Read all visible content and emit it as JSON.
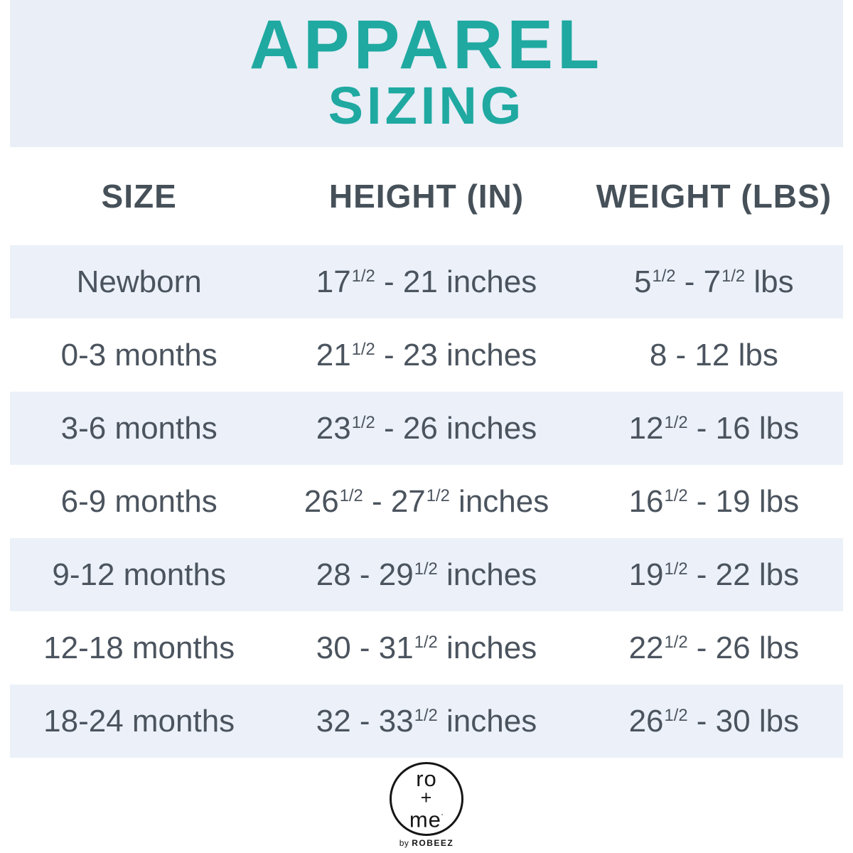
{
  "title": {
    "line1": "APPAREL",
    "line2": "SIZING"
  },
  "colors": {
    "accent_teal": "#1FA9A1",
    "banner_bg": "#E9EEF7",
    "row_shaded_bg": "#ECF1F9",
    "heading_text": "#465059",
    "body_text": "#4B545E"
  },
  "table": {
    "columns": [
      "SIZE",
      "HEIGHT (IN)",
      "WEIGHT (LBS)"
    ],
    "shaded_rows": [
      0,
      2,
      4,
      6
    ],
    "rows": [
      [
        [
          {
            "t": "Newborn"
          }
        ],
        [
          {
            "t": "17"
          },
          {
            "s": "1/2"
          },
          {
            "t": " - 21 inches"
          }
        ],
        [
          {
            "t": "5"
          },
          {
            "s": "1/2"
          },
          {
            "t": " - 7"
          },
          {
            "s": "1/2"
          },
          {
            "t": " lbs"
          }
        ]
      ],
      [
        [
          {
            "t": "0-3 months"
          }
        ],
        [
          {
            "t": "21"
          },
          {
            "s": "1/2"
          },
          {
            "t": " - 23 inches"
          }
        ],
        [
          {
            "t": "8 - 12 lbs"
          }
        ]
      ],
      [
        [
          {
            "t": "3-6 months"
          }
        ],
        [
          {
            "t": "23"
          },
          {
            "s": "1/2"
          },
          {
            "t": " - 26 inches"
          }
        ],
        [
          {
            "t": "12"
          },
          {
            "s": "1/2"
          },
          {
            "t": " - 16 lbs"
          }
        ]
      ],
      [
        [
          {
            "t": "6-9 months"
          }
        ],
        [
          {
            "t": "26"
          },
          {
            "s": "1/2"
          },
          {
            "t": " - 27"
          },
          {
            "s": "1/2"
          },
          {
            "t": " inches"
          }
        ],
        [
          {
            "t": "16"
          },
          {
            "s": "1/2"
          },
          {
            "t": " - 19 lbs"
          }
        ]
      ],
      [
        [
          {
            "t": "9-12 months"
          }
        ],
        [
          {
            "t": "28 - 29"
          },
          {
            "s": "1/2"
          },
          {
            "t": " inches"
          }
        ],
        [
          {
            "t": "19"
          },
          {
            "s": "1/2"
          },
          {
            "t": " - 22 lbs"
          }
        ]
      ],
      [
        [
          {
            "t": "12-18 months"
          }
        ],
        [
          {
            "t": "30 - 31"
          },
          {
            "s": "1/2"
          },
          {
            "t": " inches"
          }
        ],
        [
          {
            "t": "22"
          },
          {
            "s": "1/2"
          },
          {
            "t": " - 26 lbs"
          }
        ]
      ],
      [
        [
          {
            "t": "18-24 months"
          }
        ],
        [
          {
            "t": "32 - 33"
          },
          {
            "s": "1/2"
          },
          {
            "t": " inches"
          }
        ],
        [
          {
            "t": "26"
          },
          {
            "s": "1/2"
          },
          {
            "t": " - 30 lbs"
          }
        ]
      ]
    ]
  },
  "logo": {
    "word_top": "ro",
    "word_mid": "+",
    "word_bottom": "me",
    "trademark": "’",
    "byline_by": "by",
    "byline_brand": "ROBEEZ"
  }
}
